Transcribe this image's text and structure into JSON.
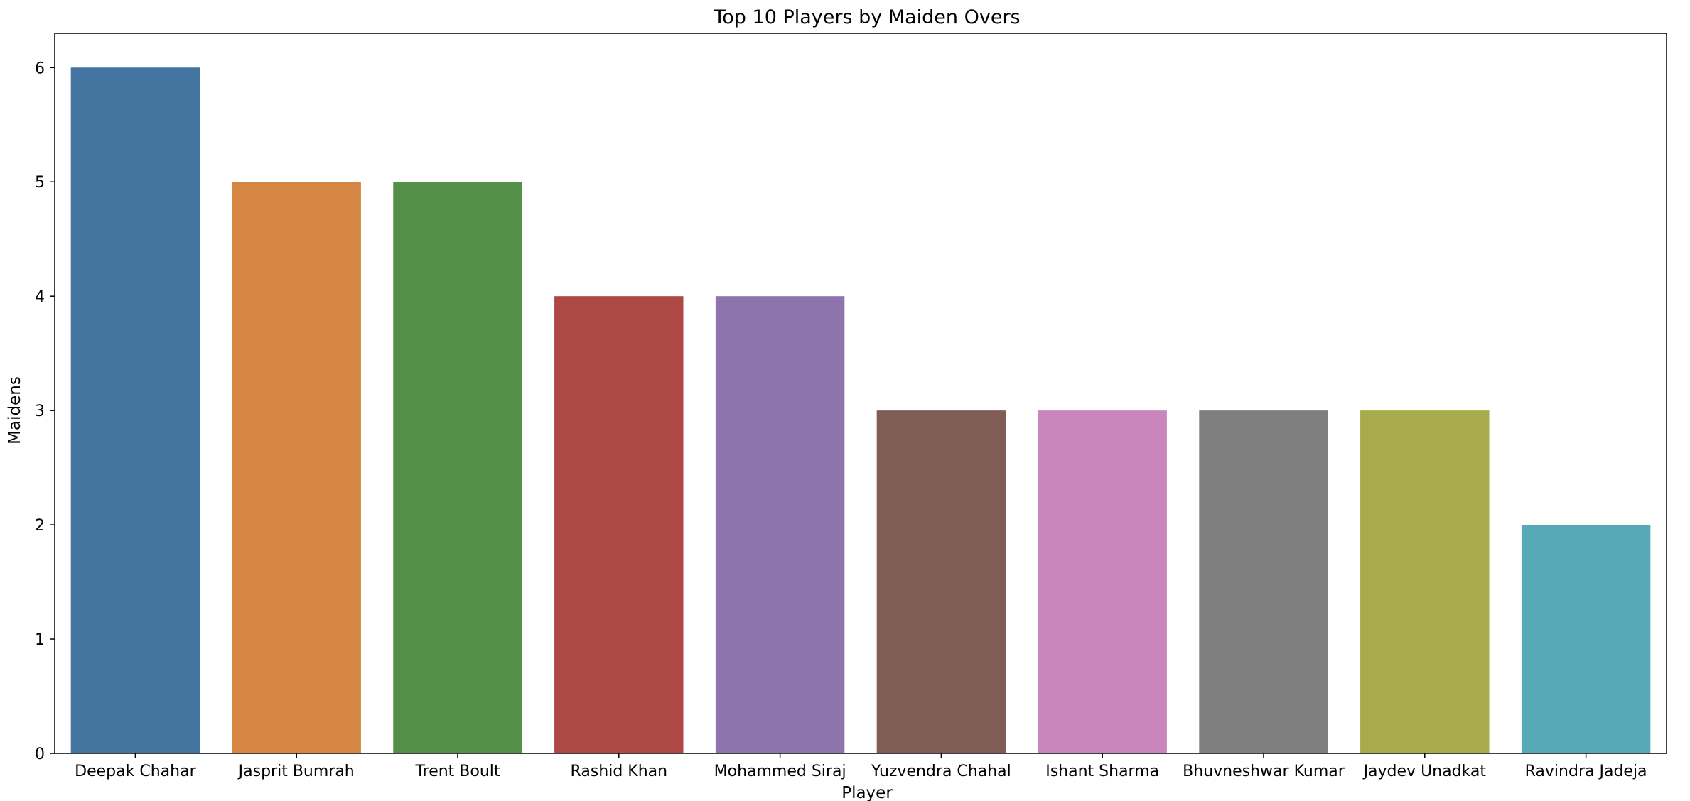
{
  "chart_data": {
    "type": "bar",
    "title": "Top 10 Players by Maiden Overs",
    "xlabel": "Player",
    "ylabel": "Maidens",
    "categories": [
      "Deepak Chahar",
      "Jasprit Bumrah",
      "Trent Boult",
      "Rashid Khan",
      "Mohammed Siraj",
      "Yuzvendra Chahal",
      "Ishant Sharma",
      "Bhuvneshwar Kumar",
      "Jaydev Unadkat",
      "Ravindra Jadeja"
    ],
    "values": [
      6,
      5,
      5,
      4,
      4,
      3,
      3,
      3,
      3,
      2
    ],
    "colors": [
      "#4474a0",
      "#d58642",
      "#538f46",
      "#ae4845",
      "#8d74ac",
      "#7f5d54",
      "#c986bd",
      "#7f7f7f",
      "#a8ab4b",
      "#58a9b7"
    ],
    "ylim": [
      0,
      6.3
    ],
    "yticks": [
      0,
      1,
      2,
      3,
      4,
      5,
      6
    ],
    "grid": false,
    "legend": false
  }
}
